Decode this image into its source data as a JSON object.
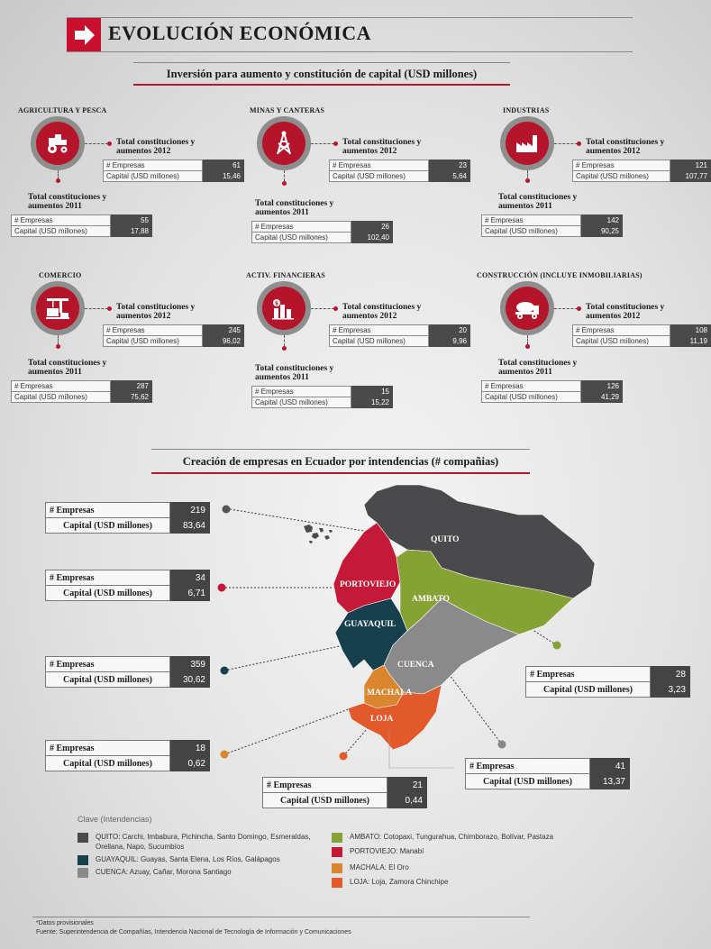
{
  "header": {
    "title": "EVOLUCIÓN ECONÓMICA"
  },
  "inversion": {
    "title": "Inversión para aumento y constitución de capital (USD millones)",
    "sectors": [
      {
        "name": "AGRICULTURA Y PESCA",
        "icon": "tractor-icon",
        "label_2012": "Total constituciones y aumentos 2012",
        "empresas_2012": "61",
        "capital_2012": "15,46",
        "label_2011": "Total constituciones y aumentos 2011",
        "empresas_2011": "55",
        "capital_2011": "17,88"
      },
      {
        "name": "MINAS Y CANTERAS",
        "icon": "mining-tower-icon",
        "label_2012": "Total constituciones y aumentos 2012",
        "empresas_2012": "23",
        "capital_2012": "5,64",
        "label_2011": "Total constituciones y aumentos 2011",
        "empresas_2011": "26",
        "capital_2011": "102,40"
      },
      {
        "name": "INDUSTRIAS",
        "icon": "factory-icon",
        "label_2012": "Total constituciones y aumentos 2012",
        "empresas_2012": "121",
        "capital_2012": "107,77",
        "label_2011": "Total constituciones y aumentos 2011",
        "empresas_2011": "142",
        "capital_2011": "90,25"
      },
      {
        "name": "COMERCIO",
        "icon": "crane-cargo-icon",
        "label_2012": "Total constituciones y aumentos 2012",
        "empresas_2012": "245",
        "capital_2012": "96,02",
        "label_2011": "Total constituciones y aumentos 2011",
        "empresas_2011": "287",
        "capital_2011": "75,62"
      },
      {
        "name": "ACTIV. FINANCIERAS",
        "icon": "money-chart-icon",
        "label_2012": "Total constituciones y aumentos 2012",
        "empresas_2012": "20",
        "capital_2012": "9,96",
        "label_2011": "Total constituciones y aumentos 2011",
        "empresas_2011": "15",
        "capital_2011": "15,22"
      },
      {
        "name": "CONSTRUCCIÓN (INCLUYE INMOBILIARIAS)",
        "icon": "cement-truck-icon",
        "label_2012": "Total constituciones y aumentos 2012",
        "empresas_2012": "108",
        "capital_2012": "11,19",
        "label_2011": "Total constituciones y aumentos 2011",
        "empresas_2011": "126",
        "capital_2011": "41,29"
      }
    ],
    "row_empresas": "# Empresas",
    "row_capital": "Capital (USD millones)"
  },
  "creacion": {
    "title": "Creación de empresas en Ecuador por intendencias (# compañias)",
    "row_empresas": "# Empresas",
    "row_capital": "Capital (USD millones)",
    "map_labels": {
      "quito": "QUITO",
      "portoviejo": "PORTOVIEJO",
      "ambato": "AMBATO",
      "guayaquil": "GUAYAQUIL",
      "cuenca": "CUENCA",
      "machala": "MACHALA",
      "loja": "LOJA"
    },
    "regions": {
      "quito": {
        "empresas": "219",
        "capital": "83,64"
      },
      "portoviejo": {
        "empresas": "34",
        "capital": "6,71"
      },
      "guayaquil": {
        "empresas": "359",
        "capital": "30,62"
      },
      "ambato": {
        "empresas": "28",
        "capital": "3,23"
      },
      "machala": {
        "empresas": "18",
        "capital": "0,62"
      },
      "loja": {
        "empresas": "21",
        "capital": "0,44"
      },
      "cuenca": {
        "empresas": "41",
        "capital": "13,37"
      }
    },
    "colors": {
      "quito": "#4a4a4c",
      "guayaquil": "#16404d",
      "cuenca": "#8a8a8a",
      "ambato": "#86a134",
      "portoviejo": "#c41a37",
      "machala": "#d9862e",
      "loja": "#e25a2c"
    }
  },
  "legend": {
    "title": "Clave (Intendencias)",
    "items": [
      {
        "color": "#4a4a4c",
        "text": "QUITO: Carchi, Imbabura, Pichincha, Santo Domingo, Esmeraldas, Orellana, Napo, Sucumbíos"
      },
      {
        "color": "#16404d",
        "text": "GUAYAQUIL: Guayas, Santa Elena, Los Ríos, Galápagos"
      },
      {
        "color": "#8a8a8a",
        "text": "CUENCA: Azuay, Cañar, Morona Santiago"
      },
      {
        "color": "#86a134",
        "text": "AMBATO: Cotopaxi, Tungurahua, Chimborazo, Bolívar, Pastaza"
      },
      {
        "color": "#c41a37",
        "text": "PORTOVIEJO: Manabí"
      },
      {
        "color": "#d9862e",
        "text": "MACHALA: El Oro"
      },
      {
        "color": "#e25a2c",
        "text": "LOJA: Loja, Zamora Chinchipe"
      }
    ]
  },
  "footer": {
    "note": "*Datos provisionales",
    "source": "Fuente: Superintendencia de Compañías, Intendencia Nacional de Tecnología de Información y  Comunicaciones"
  }
}
